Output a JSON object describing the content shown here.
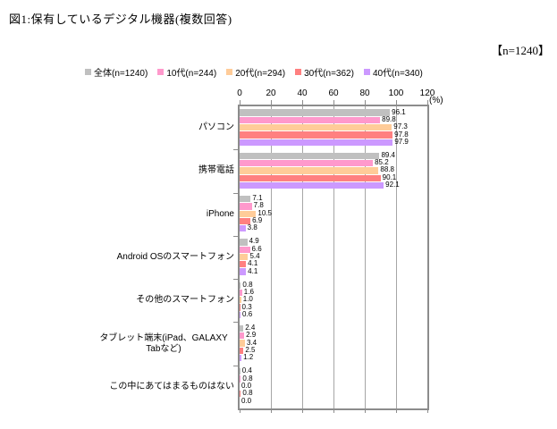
{
  "page": {
    "figure_title": "図1:保有しているデジタル機器(複数回答)",
    "sample_label": "【n=1240】"
  },
  "chart_data": {
    "type": "bar",
    "orientation": "horizontal",
    "title": "図1:保有しているデジタル機器(複数回答)",
    "sample_size": "n=1240",
    "categories": [
      "パソコン",
      "携帯電話",
      "iPhone",
      "Android OSのスマートフォン",
      "その他のスマートフォン",
      "タブレット端末(iPad、GALAXY Tabなど)",
      "この中にあてはまるものはない"
    ],
    "series": [
      {
        "name": "全体(n=1240)",
        "color": "#c0c0c0",
        "values": [
          96.1,
          89.4,
          7.1,
          4.9,
          0.8,
          2.4,
          0.4
        ]
      },
      {
        "name": "10代(n=244)",
        "color": "#ff99cc",
        "values": [
          89.8,
          85.2,
          7.8,
          6.6,
          1.6,
          2.9,
          0.8
        ]
      },
      {
        "name": "20代(n=294)",
        "color": "#ffcc99",
        "values": [
          97.3,
          88.8,
          10.5,
          5.4,
          1.0,
          3.4,
          0.0
        ]
      },
      {
        "name": "30代(n=362)",
        "color": "#ff8080",
        "values": [
          97.8,
          90.1,
          6.9,
          4.1,
          0.3,
          2.5,
          0.8
        ]
      },
      {
        "name": "40代(n=340)",
        "color": "#cc99ff",
        "values": [
          97.9,
          92.1,
          3.8,
          4.1,
          0.6,
          1.2,
          0.0
        ]
      }
    ],
    "xlim": [
      0,
      120
    ],
    "xticks": [
      0,
      20,
      40,
      60,
      80,
      100,
      120
    ],
    "unit_label": "(%)",
    "value_labels": true,
    "legend_position": "top",
    "grid": true,
    "grid_color": "#a6a6a6",
    "plot_border_color": "#8c8c8c"
  }
}
